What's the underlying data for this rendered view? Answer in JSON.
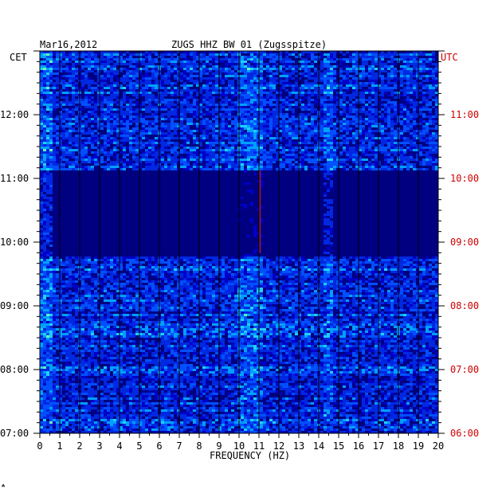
{
  "header": {
    "date": "Mar16,2012",
    "station": "ZUGS HHZ BW 01 (Zugsspitze)",
    "left_zone": "CET",
    "right_zone": "UTC"
  },
  "chart_data": {
    "type": "heatmap",
    "title": "ZUGS HHZ BW 01 (Zugsspitze)",
    "xlabel": "FREQUENCY (HZ)",
    "xlim": [
      0,
      20
    ],
    "x_ticks": [
      "0",
      "1",
      "2",
      "3",
      "4",
      "5",
      "6",
      "7",
      "8",
      "9",
      "10",
      "11",
      "12",
      "13",
      "14",
      "15",
      "16",
      "17",
      "18",
      "19",
      "20"
    ],
    "y_left_label": "CET",
    "y_right_label": "UTC",
    "y_left_ticks": [
      "12:00",
      "11:00",
      "10:00",
      "09:00",
      "08:00",
      "07:00"
    ],
    "y_right_ticks": [
      "11:00",
      "10:00",
      "09:00",
      "08:00",
      "07:00",
      "06:00"
    ],
    "time_range_cet": [
      "07:00",
      "13:00"
    ],
    "colors": {
      "background": "#000080",
      "low": "#0000c8",
      "mid": "#00a0ff",
      "high": "#ffff00",
      "peak": "#ff2000",
      "utc_label": "#cc0000"
    }
  },
  "corner_mark": "☘"
}
